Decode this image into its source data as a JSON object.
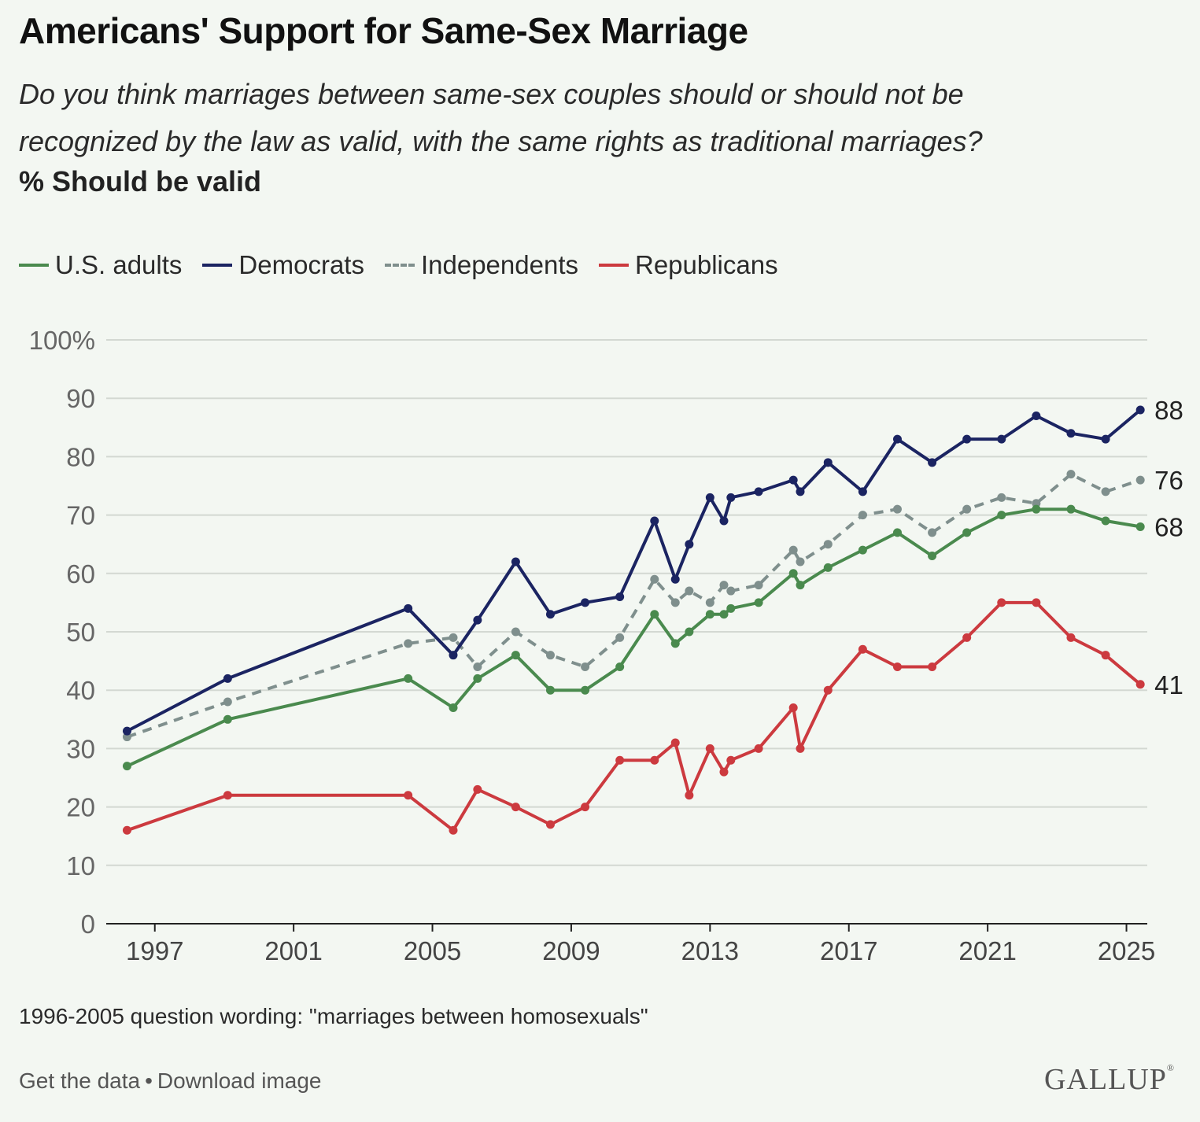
{
  "title": "Americans' Support for Same-Sex Marriage",
  "subtitle_line1": "Do you think marriages between same-sex couples should or should not be",
  "subtitle_line2": "recognized by the law as valid, with the same rights as traditional marriages?",
  "measure_label": "% Should be valid",
  "note": "1996-2005 question wording: \"marriages between homosexuals\"",
  "footer": {
    "get_data": "Get the data",
    "separator": "•",
    "download_image": "Download image"
  },
  "logo": "GALLUP",
  "chart_data": {
    "type": "line",
    "y_tick_labels": [
      "100%",
      "90",
      "80",
      "70",
      "60",
      "50",
      "40",
      "30",
      "20",
      "10",
      "0"
    ],
    "x_tick_labels": [
      "1997",
      "2001",
      "2005",
      "2009",
      "2013",
      "2017",
      "2021",
      "2025"
    ],
    "x_ticks": [
      1997,
      2001,
      2005,
      2009,
      2013,
      2017,
      2021,
      2025
    ],
    "xlim": [
      1995.6,
      2025.6
    ],
    "ylim": [
      0,
      100
    ],
    "grid": "horizontal",
    "legend_position": "top-left",
    "series": [
      {
        "name": "U.S. adults",
        "color": "#4a8a4e",
        "dashed": false,
        "end_label": "68",
        "points": [
          [
            1996.2,
            27
          ],
          [
            1999.1,
            35
          ],
          [
            2004.3,
            42
          ],
          [
            2005.6,
            37
          ],
          [
            2006.3,
            42
          ],
          [
            2007.4,
            46
          ],
          [
            2008.4,
            40
          ],
          [
            2009.4,
            40
          ],
          [
            2010.4,
            44
          ],
          [
            2011.4,
            53
          ],
          [
            2012.0,
            48
          ],
          [
            2012.4,
            50
          ],
          [
            2013.0,
            53
          ],
          [
            2013.4,
            53
          ],
          [
            2013.6,
            54
          ],
          [
            2014.4,
            55
          ],
          [
            2015.4,
            60
          ],
          [
            2015.6,
            58
          ],
          [
            2016.4,
            61
          ],
          [
            2017.4,
            64
          ],
          [
            2018.4,
            67
          ],
          [
            2019.4,
            63
          ],
          [
            2020.4,
            67
          ],
          [
            2021.4,
            70
          ],
          [
            2022.4,
            71
          ],
          [
            2023.4,
            71
          ],
          [
            2024.4,
            69
          ],
          [
            2025.4,
            68
          ]
        ]
      },
      {
        "name": "Democrats",
        "color": "#1b2462",
        "dashed": false,
        "end_label": "88",
        "points": [
          [
            1996.2,
            33
          ],
          [
            1999.1,
            42
          ],
          [
            2004.3,
            54
          ],
          [
            2005.6,
            46
          ],
          [
            2006.3,
            52
          ],
          [
            2007.4,
            62
          ],
          [
            2008.4,
            53
          ],
          [
            2009.4,
            55
          ],
          [
            2010.4,
            56
          ],
          [
            2011.4,
            69
          ],
          [
            2012.0,
            59
          ],
          [
            2012.4,
            65
          ],
          [
            2013.0,
            73
          ],
          [
            2013.4,
            69
          ],
          [
            2013.6,
            73
          ],
          [
            2014.4,
            74
          ],
          [
            2015.4,
            76
          ],
          [
            2015.6,
            74
          ],
          [
            2016.4,
            79
          ],
          [
            2017.4,
            74
          ],
          [
            2018.4,
            83
          ],
          [
            2019.4,
            79
          ],
          [
            2020.4,
            83
          ],
          [
            2021.4,
            83
          ],
          [
            2022.4,
            87
          ],
          [
            2023.4,
            84
          ],
          [
            2024.4,
            83
          ],
          [
            2025.4,
            88
          ]
        ]
      },
      {
        "name": "Independents",
        "color": "#7f8f8d",
        "dashed": true,
        "end_label": "76",
        "points": [
          [
            1996.2,
            32
          ],
          [
            1999.1,
            38
          ],
          [
            2004.3,
            48
          ],
          [
            2005.6,
            49
          ],
          [
            2006.3,
            44
          ],
          [
            2007.4,
            50
          ],
          [
            2008.4,
            46
          ],
          [
            2009.4,
            44
          ],
          [
            2010.4,
            49
          ],
          [
            2011.4,
            59
          ],
          [
            2012.0,
            55
          ],
          [
            2012.4,
            57
          ],
          [
            2013.0,
            55
          ],
          [
            2013.4,
            58
          ],
          [
            2013.6,
            57
          ],
          [
            2014.4,
            58
          ],
          [
            2015.4,
            64
          ],
          [
            2015.6,
            62
          ],
          [
            2016.4,
            65
          ],
          [
            2017.4,
            70
          ],
          [
            2018.4,
            71
          ],
          [
            2019.4,
            67
          ],
          [
            2020.4,
            71
          ],
          [
            2021.4,
            73
          ],
          [
            2022.4,
            72
          ],
          [
            2023.4,
            77
          ],
          [
            2024.4,
            74
          ],
          [
            2025.4,
            76
          ]
        ]
      },
      {
        "name": "Republicans",
        "color": "#cc3a3f",
        "dashed": false,
        "end_label": "41",
        "points": [
          [
            1996.2,
            16
          ],
          [
            1999.1,
            22
          ],
          [
            2004.3,
            22
          ],
          [
            2005.6,
            16
          ],
          [
            2006.3,
            23
          ],
          [
            2007.4,
            20
          ],
          [
            2008.4,
            17
          ],
          [
            2009.4,
            20
          ],
          [
            2010.4,
            28
          ],
          [
            2011.4,
            28
          ],
          [
            2012.0,
            31
          ],
          [
            2012.4,
            22
          ],
          [
            2013.0,
            30
          ],
          [
            2013.4,
            26
          ],
          [
            2013.6,
            28
          ],
          [
            2014.4,
            30
          ],
          [
            2015.4,
            37
          ],
          [
            2015.6,
            30
          ],
          [
            2016.4,
            40
          ],
          [
            2017.4,
            47
          ],
          [
            2018.4,
            44
          ],
          [
            2019.4,
            44
          ],
          [
            2020.4,
            49
          ],
          [
            2021.4,
            55
          ],
          [
            2022.4,
            55
          ],
          [
            2023.4,
            49
          ],
          [
            2024.4,
            46
          ],
          [
            2025.4,
            41
          ]
        ]
      }
    ]
  }
}
